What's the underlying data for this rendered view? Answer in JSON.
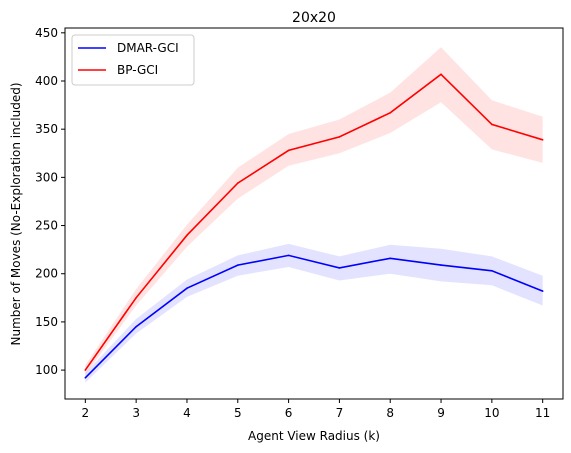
{
  "chart_data": {
    "type": "line",
    "title": "20x20",
    "xlabel": "Agent View Radius (k)",
    "ylabel": "Number of Moves (No-Exploration included)",
    "x": [
      2,
      3,
      4,
      5,
      6,
      7,
      8,
      9,
      10,
      11
    ],
    "xlim": [
      1.6,
      11.4
    ],
    "ylim": [
      70,
      455
    ],
    "yticks": [
      100,
      150,
      200,
      250,
      300,
      350,
      400,
      450
    ],
    "legend_position": "top-left",
    "grid": false,
    "series": [
      {
        "name": "DMAR-GCI",
        "color": "#0000ff",
        "band_color": "#6666ff",
        "values": [
          92,
          145,
          185,
          209,
          219,
          206,
          216,
          209,
          203,
          182
        ],
        "lower": [
          87,
          138,
          176,
          198,
          207,
          193,
          200,
          192,
          188,
          167
        ],
        "upper": [
          97,
          153,
          194,
          219,
          231,
          218,
          230,
          226,
          218,
          198
        ]
      },
      {
        "name": "BP-GCI",
        "color": "#ff0000",
        "band_color": "#ff6666",
        "values": [
          100,
          175,
          240,
          294,
          328,
          342,
          367,
          407,
          355,
          339
        ],
        "lower": [
          95,
          167,
          228,
          278,
          312,
          325,
          346,
          378,
          329,
          315
        ],
        "upper": [
          105,
          184,
          251,
          310,
          345,
          360,
          388,
          435,
          380,
          363
        ]
      }
    ]
  }
}
